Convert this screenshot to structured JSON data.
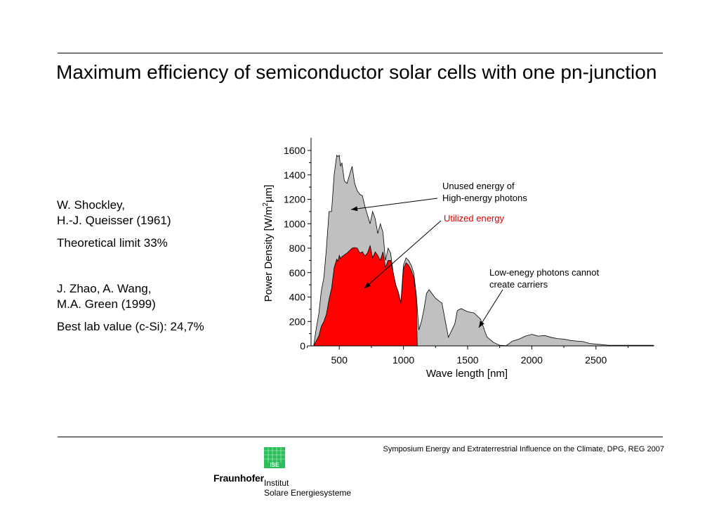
{
  "slide": {
    "title": "Maximum efficiency of semiconductor solar cells with one pn-junction"
  },
  "references": {
    "shockley_line1": "W. Shockley,",
    "shockley_line2": "H.-J. Queisser (1961)",
    "theory": "Theoretical limit  33%",
    "zhao_line1": "J. Zhao, A. Wang,",
    "zhao_line2": "M.A. Green (1999)",
    "lab": "Best lab value (c-Si):  24,7%"
  },
  "footer": {
    "text": "Symposium Energy and Extraterrestrial Influence on the Climate, DPG, REG 2007",
    "logo_name": "Fraunhofer",
    "logo_inst_line1": "Institut",
    "logo_inst_line2": "Solare Energiesysteme",
    "logo_mark_label": "ISE",
    "logo_icon": "fraunhofer-ise-grid-icon",
    "logo_color": "#2bbf5a"
  },
  "chart_data": {
    "type": "area",
    "xlabel": "Wave length [nm]",
    "ylabel_main": "Power Density  [W/m",
    "ylabel_sup": "2",
    "ylabel_end": "µm]",
    "xlim": [
      280,
      2950
    ],
    "ylim": [
      0,
      1600
    ],
    "xticks": [
      500,
      1000,
      1500,
      2000,
      2500
    ],
    "yticks": [
      0,
      200,
      400,
      600,
      800,
      1000,
      1200,
      1400,
      1600
    ],
    "grid": false,
    "colors": {
      "unused": "#c0c0c0",
      "utilized": "#ff0000",
      "outline": "#000000",
      "annotation_red": "#e00000"
    },
    "series": [
      {
        "name": "Unused energy of High-energy photons",
        "x": [
          300,
          320,
          340,
          360,
          380,
          400,
          420,
          440,
          460,
          480,
          490,
          500,
          510,
          520,
          540,
          560,
          580,
          600,
          620,
          640,
          660,
          680,
          700,
          720,
          740,
          760,
          780,
          800,
          820,
          840,
          860,
          880,
          900,
          920,
          940,
          960,
          980,
          1000,
          1020,
          1040,
          1060,
          1080,
          1100,
          1120,
          1140,
          1160,
          1180,
          1200,
          1250,
          1300,
          1350,
          1400,
          1420,
          1450,
          1500,
          1550,
          1600,
          1650,
          1700,
          1750,
          1800,
          1850,
          1900,
          1950,
          2000,
          2050,
          2100,
          2150,
          2200,
          2250,
          2300,
          2350,
          2400,
          2450,
          2500,
          2550,
          2600,
          2700,
          2800,
          2950
        ],
        "y": [
          0,
          140,
          260,
          450,
          560,
          800,
          1100,
          1100,
          1400,
          1560,
          1550,
          1560,
          1470,
          1500,
          1350,
          1330,
          1400,
          1470,
          1330,
          1270,
          1240,
          1230,
          1140,
          1070,
          1000,
          1100,
          1040,
          920,
          1000,
          930,
          700,
          800,
          760,
          600,
          500,
          440,
          350,
          660,
          720,
          700,
          660,
          600,
          420,
          130,
          200,
          300,
          430,
          460,
          390,
          350,
          70,
          180,
          290,
          305,
          280,
          270,
          220,
          75,
          30,
          5,
          2,
          40,
          55,
          80,
          95,
          80,
          85,
          70,
          60,
          55,
          45,
          40,
          35,
          20,
          15,
          10,
          5,
          5,
          5,
          5
        ]
      },
      {
        "name": "Utilized energy",
        "x": [
          300,
          320,
          340,
          360,
          380,
          400,
          420,
          440,
          460,
          480,
          490,
          500,
          510,
          520,
          540,
          560,
          580,
          600,
          620,
          640,
          660,
          680,
          700,
          720,
          740,
          760,
          780,
          800,
          820,
          840,
          860,
          880,
          900,
          920,
          940,
          960,
          980,
          1000,
          1020,
          1040,
          1060,
          1080,
          1100,
          1108
        ],
        "y": [
          0,
          40,
          80,
          160,
          200,
          260,
          380,
          470,
          640,
          710,
          690,
          740,
          715,
          730,
          745,
          760,
          780,
          800,
          805,
          800,
          760,
          770,
          735,
          760,
          820,
          720,
          770,
          740,
          700,
          770,
          640,
          700,
          700,
          600,
          500,
          440,
          350,
          630,
          680,
          660,
          620,
          560,
          400,
          0
        ]
      }
    ],
    "annotations": [
      {
        "text_line1": "Unused energy of",
        "text_line2": "High-energy photons"
      },
      {
        "text_line1": "Utilized energy",
        "text_line2": ""
      },
      {
        "text_line1": "Low-enegy photons cannot",
        "text_line2": "create carriers"
      }
    ]
  }
}
